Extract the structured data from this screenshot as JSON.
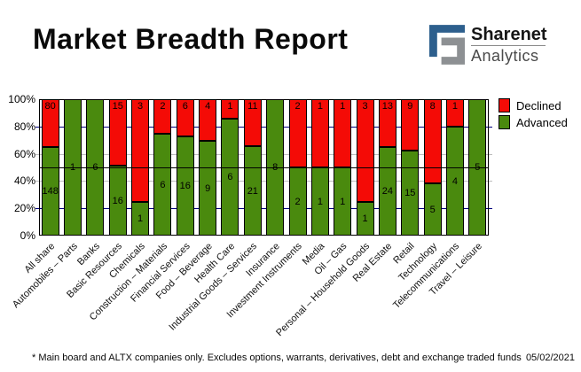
{
  "header": {
    "title": "Market Breadth Report",
    "logo": {
      "brand": "Sharenet",
      "sub": "Analytics",
      "blue": "#2d5f8d",
      "gray": "#8d9093"
    }
  },
  "legend": {
    "declined": "Declined",
    "advanced": "Advanced"
  },
  "footer": {
    "note": "* Main board and ALTX companies only. Excludes options, warrants, derivatives, debt and exchange traded funds",
    "date": "05/02/2021"
  },
  "chart_data": {
    "type": "bar",
    "stacked": true,
    "normalized": "percent",
    "title": "Market Breadth Report",
    "categories": [
      "All share",
      "Automobiles – Parts",
      "Banks",
      "Basic Resources",
      "Chemicals",
      "Construction – Materials",
      "Financial Services",
      "Food – Beverage",
      "Health Care",
      "Industrial Goods – Services",
      "Insurance",
      "Investment Instruments",
      "Media",
      "Oil – Gas",
      "Personal – Household Goods",
      "Real Estate",
      "Retail",
      "Technology",
      "Telecommunications",
      "Travel – Leisure"
    ],
    "series": [
      {
        "name": "Declined",
        "color": "#f40b06",
        "values": [
          80,
          0,
          0,
          15,
          3,
          2,
          6,
          4,
          1,
          11,
          0,
          2,
          1,
          1,
          3,
          13,
          9,
          8,
          1,
          0
        ]
      },
      {
        "name": "Advanced",
        "color": "#4a8a0e",
        "values": [
          148,
          1,
          6,
          16,
          1,
          6,
          16,
          9,
          6,
          21,
          8,
          2,
          1,
          1,
          1,
          24,
          15,
          5,
          4,
          5
        ]
      }
    ],
    "ylim": [
      0,
      100
    ],
    "yticks": [
      "0%",
      "20%",
      "40%",
      "60%",
      "80%",
      "100%"
    ],
    "gridlines": {
      "navy_pcts": [
        20,
        80
      ],
      "gray_pcts": [
        40,
        60
      ],
      "black_pcts": [
        50
      ],
      "navy_color": "#00007f",
      "gray_color": "#bdbdbd"
    },
    "legend_position": "top-right",
    "value_labels": "shown inside segments; declined labels at top, advanced labels centered"
  }
}
